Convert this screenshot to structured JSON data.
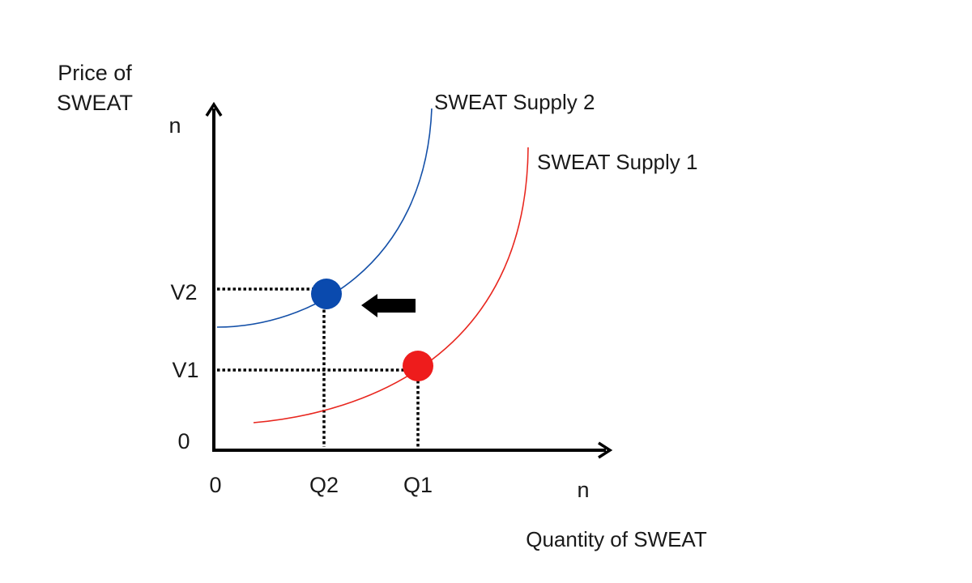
{
  "y_axis": {
    "title_line1": "Price of",
    "title_line2": "SWEAT",
    "top_label": "n"
  },
  "x_axis": {
    "title": "Quantity of SWEAT",
    "end_label": "n"
  },
  "origin": {
    "x_label": "0",
    "y_label": "0"
  },
  "ticks": {
    "v2": "V2",
    "v1": "V1",
    "q2": "Q2",
    "q1": "Q1"
  },
  "curves": {
    "supply2": {
      "label": "SWEAT Supply 2",
      "color": "#1450a8"
    },
    "supply1": {
      "label": "SWEAT Supply 1",
      "color": "#e8261e"
    }
  },
  "points": {
    "equilibrium2": {
      "color": "#0a4aae"
    },
    "equilibrium1": {
      "color": "#ee1c1c"
    }
  },
  "shift_arrow": {
    "direction": "left",
    "color": "#000000"
  }
}
